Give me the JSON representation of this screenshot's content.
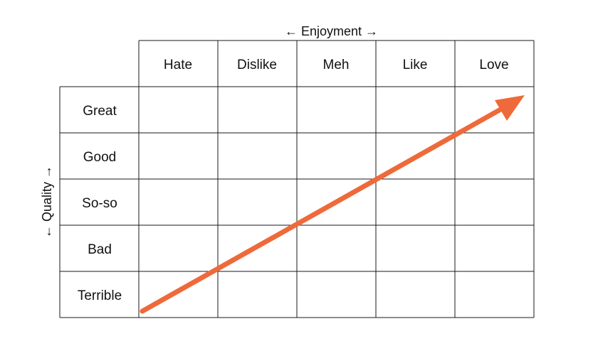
{
  "diagram": {
    "x_axis_label": "← Enjoyment →",
    "y_axis_label": "← Quality →",
    "columns": [
      "Hate",
      "Dislike",
      "Meh",
      "Like",
      "Love"
    ],
    "rows": [
      "Great",
      "Good",
      "So-so",
      "Bad",
      "Terrible"
    ],
    "arrow": {
      "from": {
        "column": "Hate",
        "row": "Terrible"
      },
      "to": {
        "column": "Love",
        "row": "Great"
      },
      "color": "#ee6a3a"
    },
    "line_color": "#1a1a1a"
  }
}
